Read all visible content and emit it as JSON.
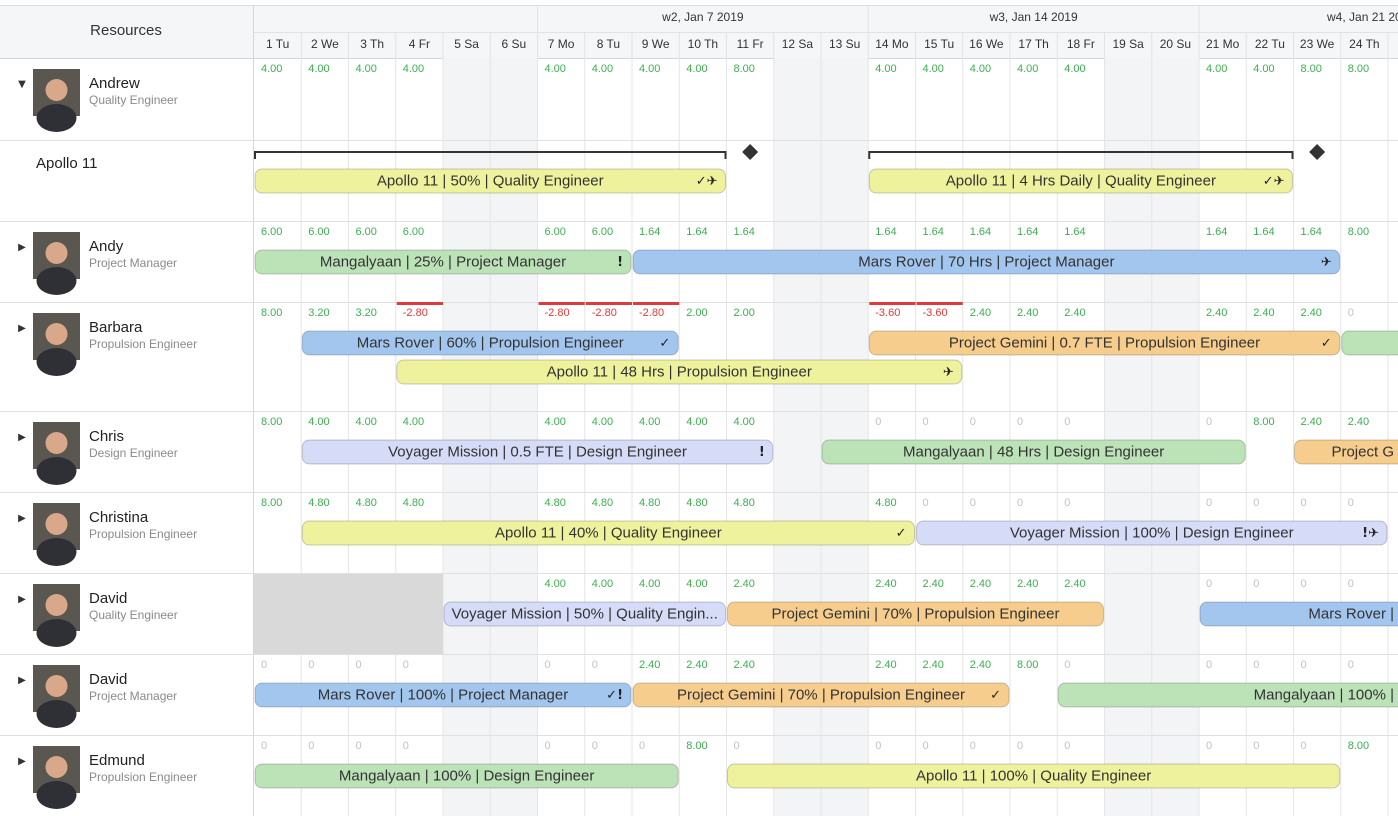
{
  "header": {
    "resources": "Resources",
    "weeks": [
      {
        "label": "w2, Jan 7 2019",
        "start": 6
      },
      {
        "label": "w3, Jan 14 2019",
        "start": 13
      },
      {
        "label": "w4, Jan 21 20",
        "start": 20
      }
    ],
    "days": [
      "1 Tu",
      "2 We",
      "3 Th",
      "4 Fr",
      "5 Sa",
      "6 Su",
      "7 Mo",
      "8 Tu",
      "9 We",
      "10 Th",
      "11 Fr",
      "12 Sa",
      "13 Su",
      "14 Mo",
      "15 Tu",
      "16 We",
      "17 Th",
      "18 Fr",
      "19 Sa",
      "20 Su",
      "21 Mo",
      "22 Tu",
      "23 We",
      "24 Th"
    ]
  },
  "rows": [
    {
      "kind": "resource",
      "name": "Andrew",
      "role": "Quality Engineer",
      "expanded": true,
      "values": [
        "4.00",
        "4.00",
        "4.00",
        "4.00",
        null,
        null,
        "4.00",
        "4.00",
        "4.00",
        "4.00",
        "8.00",
        null,
        null,
        "4.00",
        "4.00",
        "4.00",
        "4.00",
        "4.00",
        null,
        null,
        "4.00",
        "4.00",
        "8.00",
        "8.00"
      ],
      "bars": []
    },
    {
      "kind": "project",
      "name": "Apollo 11",
      "milestones": [
        10,
        22
      ],
      "bars": [
        {
          "label": "Apollo 11 | 50% | Quality Engineer",
          "start": 0,
          "end": 10,
          "color": "#eef29c",
          "icons": "✓✈",
          "lane": 0
        },
        {
          "label": "Apollo 11 | 4 Hrs Daily | Quality Engineer",
          "start": 13,
          "end": 22,
          "color": "#eef29c",
          "icons": "✓✈",
          "lane": 0
        }
      ]
    },
    {
      "kind": "resource",
      "name": "Andy",
      "role": "Project Manager",
      "expanded": false,
      "values": [
        "6.00",
        "6.00",
        "6.00",
        "6.00",
        null,
        null,
        "6.00",
        "6.00",
        "1.64",
        "1.64",
        "1.64",
        null,
        null,
        "1.64",
        "1.64",
        "1.64",
        "1.64",
        "1.64",
        null,
        null,
        "1.64",
        "1.64",
        "1.64",
        "8.00"
      ],
      "bars": [
        {
          "label": "Mangalyaan | 25% | Project Manager",
          "start": 0,
          "end": 8,
          "color": "#bce2b8",
          "icons": "!",
          "lane": 0
        },
        {
          "label": "Mars Rover | 70 Hrs | Project Manager",
          "start": 8,
          "end": 23,
          "color": "#a3c6ef",
          "icons": "✈",
          "lane": 0
        }
      ]
    },
    {
      "kind": "resource",
      "name": "Barbara",
      "role": "Propulsion Engineer",
      "expanded": false,
      "values": [
        "8.00",
        "3.20",
        "3.20",
        "-2.80",
        null,
        null,
        "-2.80",
        "-2.80",
        "-2.80",
        "2.00",
        "2.00",
        null,
        null,
        "-3.60",
        "-3.60",
        "2.40",
        "2.40",
        "2.40",
        null,
        null,
        "2.40",
        "2.40",
        "2.40",
        "0"
      ],
      "bars": [
        {
          "label": "Mars Rover | 60% | Propulsion Engineer",
          "start": 1,
          "end": 9,
          "color": "#a3c6ef",
          "icons": "✓",
          "lane": 0
        },
        {
          "label": "Project Gemini | 0.7 FTE | Propulsion Engineer",
          "start": 13,
          "end": 23,
          "color": "#f6cd8c",
          "icons": "✓",
          "lane": 0
        },
        {
          "label": null,
          "start": 23,
          "end": 27,
          "color": "#bce2b8",
          "icons": null,
          "lane": 0
        },
        {
          "label": "Apollo 11 | 48 Hrs | Propulsion Engineer",
          "start": 3,
          "end": 15,
          "color": "#eef29c",
          "icons": "✈",
          "lane": 1
        }
      ]
    },
    {
      "kind": "resource",
      "name": "Chris",
      "role": "Design Engineer",
      "expanded": false,
      "values": [
        "8.00",
        "4.00",
        "4.00",
        "4.00",
        null,
        null,
        "4.00",
        "4.00",
        "4.00",
        "4.00",
        "4.00",
        null,
        null,
        "0",
        "0",
        "0",
        "0",
        "0",
        null,
        null,
        "0",
        "8.00",
        "2.40",
        "2.40"
      ],
      "bars": [
        {
          "label": "Voyager Mission | 0.5 FTE | Design Engineer",
          "start": 1,
          "end": 11,
          "color": "#d6dbf8",
          "icons": "!",
          "lane": 0
        },
        {
          "label": "Mangalyaan | 48 Hrs | Design Engineer",
          "start": 12,
          "end": 21,
          "color": "#bce2b8",
          "icons": null,
          "lane": 0
        },
        {
          "label": "Project G",
          "start": 22,
          "end": 27,
          "color": "#f6cd8c",
          "icons": null,
          "lane": 0
        }
      ]
    },
    {
      "kind": "resource",
      "name": "Christina",
      "role": "Propulsion Engineer",
      "expanded": false,
      "values": [
        "8.00",
        "4.80",
        "4.80",
        "4.80",
        null,
        null,
        "4.80",
        "4.80",
        "4.80",
        "4.80",
        "4.80",
        null,
        null,
        "4.80",
        "0",
        "0",
        "0",
        "0",
        null,
        null,
        "0",
        "0",
        "0",
        "0"
      ],
      "bars": [
        {
          "label": "Apollo 11 | 40% | Quality Engineer",
          "start": 1,
          "end": 14,
          "color": "#eef29c",
          "icons": "✓",
          "lane": 0
        },
        {
          "label": "Voyager Mission | 100% | Design Engineer",
          "start": 14,
          "end": 24,
          "color": "#d6dbf8",
          "icons": "!✈",
          "lane": 0
        }
      ]
    },
    {
      "kind": "resource",
      "name": "David",
      "role": "Quality Engineer",
      "expanded": false,
      "unavailable": [
        0,
        4
      ],
      "values": [
        null,
        null,
        null,
        null,
        null,
        null,
        "4.00",
        "4.00",
        "4.00",
        "4.00",
        "2.40",
        null,
        null,
        "2.40",
        "2.40",
        "2.40",
        "2.40",
        "2.40",
        null,
        null,
        "0",
        "0",
        "0",
        "0"
      ],
      "bars": [
        {
          "label": "Voyager Mission | 50% | Quality Engin...",
          "start": 4,
          "end": 10,
          "color": "#d6dbf8",
          "icons": null,
          "lane": 0
        },
        {
          "label": "Project Gemini | 70% | Propulsion Engineer",
          "start": 10,
          "end": 18,
          "color": "#f6cd8c",
          "icons": null,
          "lane": 0
        },
        {
          "label": "Mars Rover |",
          "start": 20,
          "end": 27,
          "color": "#a3c6ef",
          "icons": null,
          "lane": 0
        }
      ]
    },
    {
      "kind": "resource",
      "name": "David",
      "role": "Project Manager",
      "expanded": false,
      "values": [
        "0",
        "0",
        "0",
        "0",
        null,
        null,
        "0",
        "0",
        "2.40",
        "2.40",
        "2.40",
        null,
        null,
        "2.40",
        "2.40",
        "2.40",
        "8.00",
        "0",
        null,
        null,
        "0",
        "0",
        "0",
        "0"
      ],
      "bars": [
        {
          "label": "Mars Rover | 100% | Project Manager",
          "start": 0,
          "end": 8,
          "color": "#a3c6ef",
          "icons": "✓!",
          "lane": 0
        },
        {
          "label": "Project Gemini | 70% | Propulsion Engineer",
          "start": 8,
          "end": 16,
          "color": "#f6cd8c",
          "icons": "✓",
          "lane": 0
        },
        {
          "label": "Mangalyaan | 100% |",
          "start": 17,
          "end": 27,
          "color": "#bce2b8",
          "icons": null,
          "lane": 0
        }
      ]
    },
    {
      "kind": "resource",
      "name": "Edmund",
      "role": "Propulsion Engineer",
      "expanded": false,
      "values": [
        "0",
        "0",
        "0",
        "0",
        null,
        null,
        "0",
        "0",
        "0",
        "8.00",
        "0",
        null,
        null,
        "0",
        "0",
        "0",
        "0",
        "0",
        null,
        null,
        "0",
        "0",
        "0",
        "8.00"
      ],
      "bars": [
        {
          "label": "Mangalyaan | 100% | Design Engineer",
          "start": 0,
          "end": 9,
          "color": "#bce2b8",
          "icons": null,
          "lane": 0
        },
        {
          "label": "Apollo 11 | 100% | Quality Engineer",
          "start": 10,
          "end": 23,
          "color": "#eef29c",
          "icons": null,
          "lane": 0
        }
      ]
    }
  ]
}
